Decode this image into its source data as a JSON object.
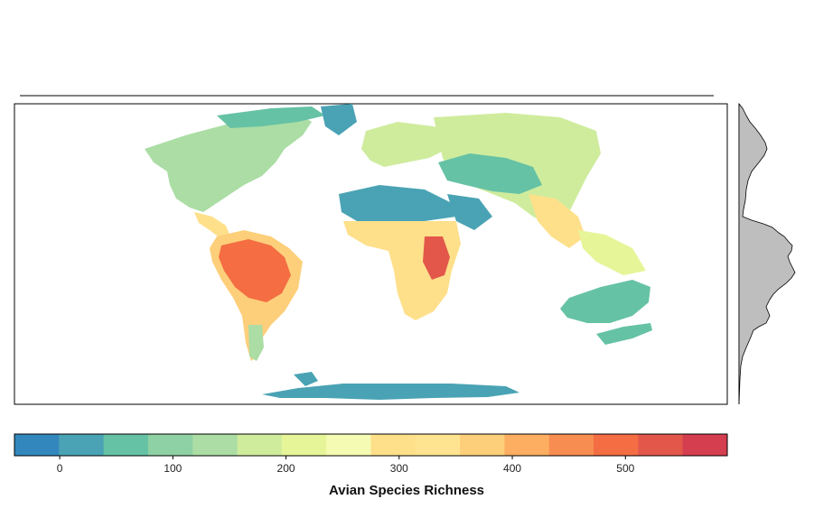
{
  "map": {
    "variable": "Avian Species Richness",
    "projection": "world"
  },
  "colorbar": {
    "title": "Avian Species Richness",
    "min": -40,
    "max": 590,
    "tick_values": [
      0,
      100,
      200,
      300,
      400,
      500
    ],
    "tick_labels": [
      "0",
      "100",
      "200",
      "300",
      "400",
      "500"
    ],
    "colors": [
      "#3288bd",
      "#4aa3b4",
      "#66c2a5",
      "#8ed1a4",
      "#abdda4",
      "#cfec9d",
      "#e6f598",
      "#f5fbb2",
      "#fee08b",
      "#fee491",
      "#fdcf7a",
      "#fdae61",
      "#f88d52",
      "#f46d43",
      "#e3574b",
      "#d53e4f"
    ]
  },
  "latitude_profile": {
    "description_axis": "species richness by latitude"
  }
}
